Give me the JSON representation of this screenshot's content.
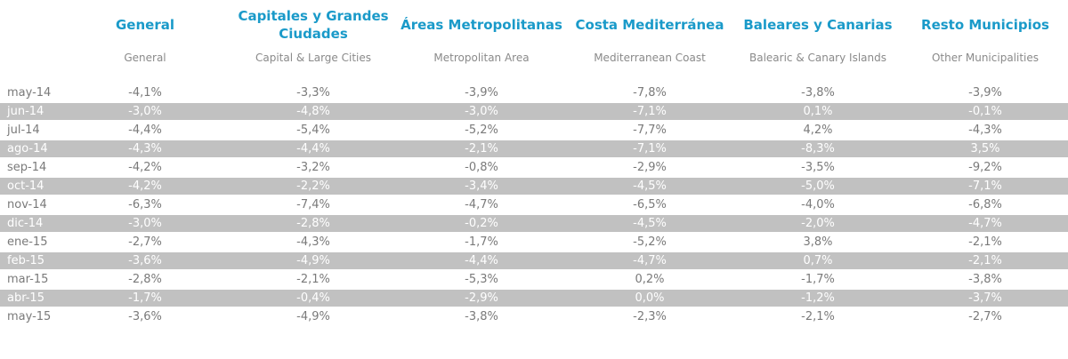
{
  "columns": [
    {
      "title": "General",
      "subtitle": "General"
    },
    {
      "title": "Capitales y Grandes Ciudades",
      "subtitle": "Capital & Large Cities"
    },
    {
      "title": "Áreas Metropolitanas",
      "subtitle": "Metropolitan Area"
    },
    {
      "title": "Costa Mediterránea",
      "subtitle": "Mediterranean Coast"
    },
    {
      "title": "Baleares y Canarias",
      "subtitle": "Balearic & Canary Islands"
    },
    {
      "title": "Resto Municipios",
      "subtitle": "Other Municipalities"
    }
  ],
  "rows": [
    {
      "label": "may-14",
      "values": [
        "-4,1%",
        "-3,3%",
        "-3,9%",
        "-7,8%",
        "-3,8%",
        "-3,9%"
      ]
    },
    {
      "label": "jun-14",
      "values": [
        "-3,0%",
        "-4,8%",
        "-3,0%",
        "-7,1%",
        "0,1%",
        "-0,1%"
      ]
    },
    {
      "label": "jul-14",
      "values": [
        "-4,4%",
        "-5,4%",
        "-5,2%",
        "-7,7%",
        "4,2%",
        "-4,3%"
      ]
    },
    {
      "label": "ago-14",
      "values": [
        "-4,3%",
        "-4,4%",
        "-2,1%",
        "-7,1%",
        "-8,3%",
        "3,5%"
      ]
    },
    {
      "label": "sep-14",
      "values": [
        "-4,2%",
        "-3,2%",
        "-0,8%",
        "-2,9%",
        "-3,5%",
        "-9,2%"
      ]
    },
    {
      "label": "oct-14",
      "values": [
        "-4,2%",
        "-2,2%",
        "-3,4%",
        "-4,5%",
        "-5,0%",
        "-7,1%"
      ]
    },
    {
      "label": "nov-14",
      "values": [
        "-6,3%",
        "-7,4%",
        "-4,7%",
        "-6,5%",
        "-4,0%",
        "-6,8%"
      ]
    },
    {
      "label": "dic-14",
      "values": [
        "-3,0%",
        "-2,8%",
        "-0,2%",
        "-4,5%",
        "-2,0%",
        "-4,7%"
      ]
    },
    {
      "label": "ene-15",
      "values": [
        "-2,7%",
        "-4,3%",
        "-1,7%",
        "-5,2%",
        "3,8%",
        "-2,1%"
      ]
    },
    {
      "label": "feb-15",
      "values": [
        "-3,6%",
        "-4,9%",
        "-4,4%",
        "-4,7%",
        "0,7%",
        "-2,1%"
      ]
    },
    {
      "label": "mar-15",
      "values": [
        "-2,8%",
        "-2,1%",
        "-5,3%",
        "0,2%",
        "-1,7%",
        "-3,8%"
      ]
    },
    {
      "label": "abr-15",
      "values": [
        "-1,7%",
        "-0,4%",
        "-2,9%",
        "0,0%",
        "-1,2%",
        "-3,7%"
      ]
    },
    {
      "label": "may-15",
      "values": [
        "-3,6%",
        "-4,9%",
        "-3,8%",
        "-2,3%",
        "-2,1%",
        "-2,7%"
      ]
    }
  ]
}
